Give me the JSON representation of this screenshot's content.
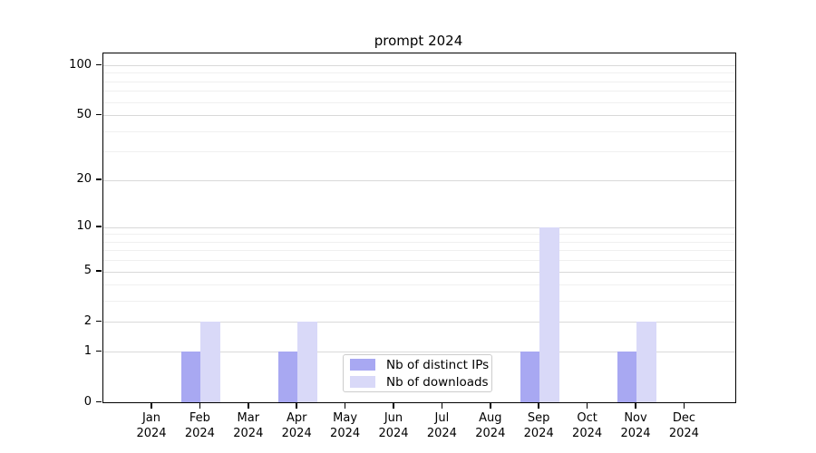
{
  "chart_data": {
    "type": "bar",
    "title": "prompt 2024",
    "categories": [
      {
        "month": "Jan",
        "year": "2024"
      },
      {
        "month": "Feb",
        "year": "2024"
      },
      {
        "month": "Mar",
        "year": "2024"
      },
      {
        "month": "Apr",
        "year": "2024"
      },
      {
        "month": "May",
        "year": "2024"
      },
      {
        "month": "Jun",
        "year": "2024"
      },
      {
        "month": "Jul",
        "year": "2024"
      },
      {
        "month": "Aug",
        "year": "2024"
      },
      {
        "month": "Sep",
        "year": "2024"
      },
      {
        "month": "Oct",
        "year": "2024"
      },
      {
        "month": "Nov",
        "year": "2024"
      },
      {
        "month": "Dec",
        "year": "2024"
      }
    ],
    "series": [
      {
        "name": "Nb of distinct IPs",
        "color": "#a8a8f2",
        "values": [
          0,
          1,
          0,
          1,
          0,
          0,
          0,
          0,
          1,
          0,
          1,
          0
        ]
      },
      {
        "name": "Nb of downloads",
        "color": "#d9d9f8",
        "values": [
          0,
          2,
          0,
          2,
          0,
          0,
          0,
          0,
          10,
          0,
          2,
          0
        ]
      }
    ],
    "y_ticks": [
      0,
      1,
      2,
      5,
      10,
      20,
      50,
      100
    ],
    "y_minor_gridlines": [
      3,
      4,
      6,
      7,
      8,
      9,
      30,
      40,
      60,
      70,
      80,
      90
    ],
    "scale": "log1p",
    "ylim": [
      0,
      117
    ],
    "grid": "horizontal",
    "legend_position": "lower-center",
    "xlabel": "",
    "ylabel": ""
  }
}
